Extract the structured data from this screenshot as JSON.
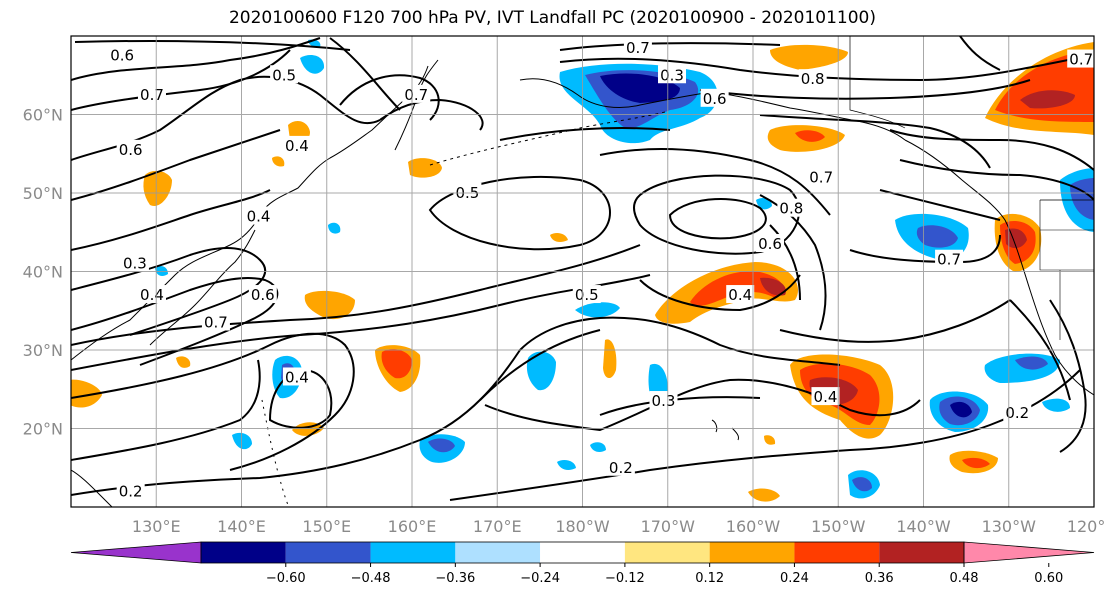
{
  "title": "2020100600 F120 700 hPa PV, IVT Landfall PC (2020100900 - 2020101100)",
  "map": {
    "lon_range": [
      120,
      240
    ],
    "lat_range": [
      10,
      70
    ],
    "grid": true,
    "lat_ticks": [
      {
        "lat": 60,
        "label": "60°N"
      },
      {
        "lat": 50,
        "label": "50°N"
      },
      {
        "lat": 40,
        "label": "40°N"
      },
      {
        "lat": 30,
        "label": "30°N"
      },
      {
        "lat": 20,
        "label": "20°N"
      }
    ],
    "lon_ticks": [
      {
        "lon": 130,
        "label": "130°E"
      },
      {
        "lon": 140,
        "label": "140°E"
      },
      {
        "lon": 150,
        "label": "150°E"
      },
      {
        "lon": 160,
        "label": "160°E"
      },
      {
        "lon": 170,
        "label": "170°E"
      },
      {
        "lon": 180,
        "label": "180°W"
      },
      {
        "lon": 190,
        "label": "170°W"
      },
      {
        "lon": 200,
        "label": "160°W"
      },
      {
        "lon": 210,
        "label": "150°W"
      },
      {
        "lon": 220,
        "label": "140°W"
      },
      {
        "lon": 230,
        "label": "130°W"
      },
      {
        "lon": 240,
        "label": "120°W"
      }
    ],
    "contour_labels": [
      {
        "text": "0.6",
        "lon": 126.0,
        "lat": 67.5
      },
      {
        "text": "0.5",
        "lon": 145.0,
        "lat": 65.0
      },
      {
        "text": "0.7",
        "lon": 129.5,
        "lat": 62.5
      },
      {
        "text": "0.6",
        "lon": 127.0,
        "lat": 55.5
      },
      {
        "text": "0.4",
        "lon": 146.5,
        "lat": 56.0
      },
      {
        "text": "0.4",
        "lon": 142.0,
        "lat": 47.0
      },
      {
        "text": "0.3",
        "lon": 127.5,
        "lat": 41.0
      },
      {
        "text": "0.4",
        "lon": 129.5,
        "lat": 37.0
      },
      {
        "text": "0.6",
        "lon": 142.5,
        "lat": 37.0
      },
      {
        "text": "0.7",
        "lon": 137.0,
        "lat": 33.5
      },
      {
        "text": "0.4",
        "lon": 146.5,
        "lat": 26.5
      },
      {
        "text": "0.2",
        "lon": 127.0,
        "lat": 12.0
      },
      {
        "text": "0.7",
        "lon": 160.5,
        "lat": 62.5
      },
      {
        "text": "0.7",
        "lon": 186.5,
        "lat": 68.5
      },
      {
        "text": "0.3",
        "lon": 190.5,
        "lat": 65.0
      },
      {
        "text": "0.6",
        "lon": 195.5,
        "lat": 62.0
      },
      {
        "text": "0.8",
        "lon": 207.0,
        "lat": 64.5
      },
      {
        "text": "0.7",
        "lon": 238.5,
        "lat": 67.0
      },
      {
        "text": "0.5",
        "lon": 166.5,
        "lat": 50.0
      },
      {
        "text": "0.7",
        "lon": 208.0,
        "lat": 52.0
      },
      {
        "text": "0.8",
        "lon": 204.5,
        "lat": 48.0
      },
      {
        "text": "0.6",
        "lon": 202.0,
        "lat": 43.5
      },
      {
        "text": "0.7",
        "lon": 223.0,
        "lat": 41.5
      },
      {
        "text": "0.5",
        "lon": 180.5,
        "lat": 37.0
      },
      {
        "text": "0.4",
        "lon": 198.5,
        "lat": 37.0
      },
      {
        "text": "0.4",
        "lon": 208.5,
        "lat": 24.0
      },
      {
        "text": "0.3",
        "lon": 189.5,
        "lat": 23.5
      },
      {
        "text": "0.2",
        "lon": 184.5,
        "lat": 15.0
      },
      {
        "text": "0.2",
        "lon": 231.0,
        "lat": 22.0
      }
    ]
  },
  "colorbar": {
    "colors": [
      "#9933cc",
      "#000088",
      "#3355cc",
      "#00bbff",
      "#aee0ff",
      "#ffffff",
      "#ffe680",
      "#ffa500",
      "#ff3d00",
      "#b22222",
      "#ff88aa"
    ],
    "tick_labels": [
      "−0.60",
      "−0.48",
      "−0.36",
      "−0.24",
      "−0.12",
      "0.12",
      "0.24",
      "0.36",
      "0.48",
      "0.60"
    ],
    "ticks": [
      -0.6,
      -0.48,
      -0.36,
      -0.24,
      -0.12,
      0.12,
      0.24,
      0.36,
      0.48,
      0.6
    ]
  }
}
